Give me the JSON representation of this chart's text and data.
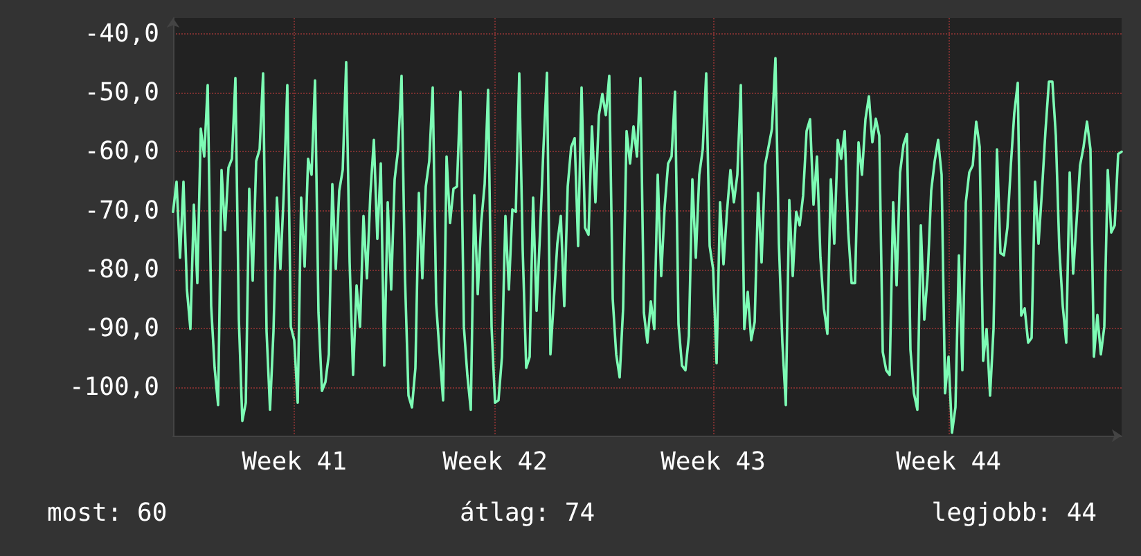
{
  "chart_data": {
    "type": "line",
    "grid": true,
    "marker": "none",
    "line_style": "solid",
    "ylim": [
      -108.2,
      -37.3
    ],
    "categories": [
      null,
      null,
      null,
      null,
      null,
      null,
      null,
      null,
      null,
      null,
      null,
      null,
      null,
      null,
      null,
      null,
      null,
      null,
      null,
      null,
      null,
      null,
      null,
      null,
      null,
      null,
      null,
      null,
      null,
      null,
      null,
      null,
      null,
      null,
      null,
      "Week 41",
      null,
      null,
      null,
      null,
      null,
      null,
      null,
      null,
      null,
      null,
      null,
      null,
      null,
      null,
      null,
      null,
      null,
      null,
      null,
      null,
      null,
      null,
      null,
      null,
      null,
      null,
      null,
      null,
      null,
      null,
      null,
      null,
      null,
      null,
      null,
      null,
      null,
      null,
      null,
      null,
      null,
      null,
      null,
      null,
      null,
      null,
      null,
      null,
      null,
      null,
      null,
      null,
      null,
      null,
      null,
      null,
      null,
      "Week 42",
      null,
      null,
      null,
      null,
      null,
      null,
      null,
      null,
      null,
      null,
      null,
      null,
      null,
      null,
      null,
      null,
      null,
      null,
      null,
      null,
      null,
      null,
      null,
      null,
      null,
      null,
      null,
      null,
      null,
      null,
      null,
      null,
      null,
      null,
      null,
      null,
      null,
      null,
      null,
      null,
      null,
      null,
      null,
      null,
      null,
      null,
      null,
      null,
      null,
      null,
      null,
      null,
      null,
      null,
      null,
      null,
      null,
      null,
      null,
      null,
      null,
      null,
      "Week 43",
      null,
      null,
      null,
      null,
      null,
      null,
      null,
      null,
      null,
      null,
      null,
      null,
      null,
      null,
      null,
      null,
      null,
      null,
      null,
      null,
      null,
      null,
      null,
      null,
      null,
      null,
      null,
      null,
      null,
      null,
      null,
      null,
      null,
      null,
      null,
      null,
      null,
      null,
      null,
      null,
      null,
      null,
      null,
      null,
      null,
      null,
      null,
      null,
      null,
      null,
      null,
      null,
      null,
      null,
      null,
      null,
      null,
      null,
      null,
      null,
      null,
      null,
      null,
      null,
      null,
      null,
      null,
      "Week 44",
      null,
      null,
      null,
      null,
      null,
      null,
      null,
      null,
      null,
      null,
      null,
      null,
      null,
      null,
      null,
      null,
      null,
      null,
      null,
      null,
      null,
      null,
      null,
      null,
      null,
      null,
      null,
      null,
      null,
      null,
      null,
      null,
      null,
      null,
      null,
      null,
      null,
      null,
      null,
      null,
      null,
      null,
      null,
      null,
      null,
      null,
      null,
      null,
      null,
      null
    ],
    "yticks": [
      {
        "value": -100,
        "label": "-100,0"
      },
      {
        "value": -90,
        "label": "-90,0"
      },
      {
        "value": -80,
        "label": "-80,0"
      },
      {
        "value": -70,
        "label": "-70,0"
      },
      {
        "value": -60,
        "label": "-60,0"
      },
      {
        "value": -50,
        "label": "-50,0"
      },
      {
        "value": -40,
        "label": "-40,0"
      }
    ],
    "annotations": [
      "most: 60",
      "átlag: 74",
      "legjobb: 44"
    ],
    "series": [
      {
        "color": "#7dfcb5",
        "values": [
          -70.2,
          -65.1,
          -78.0,
          -65.1,
          -83.4,
          -90.1,
          -69.0,
          -82.3,
          -56.1,
          -60.8,
          -48.7,
          -86.2,
          -96.7,
          -103.0,
          -63.1,
          -73.3,
          -62.7,
          -61.2,
          -47.5,
          -88.5,
          -105.7,
          -102.6,
          -66.3,
          -81.9,
          -61.6,
          -59.6,
          -46.7,
          -90.5,
          -103.8,
          -90.5,
          -67.8,
          -79.9,
          -66.6,
          -48.7,
          -89.7,
          -92.0,
          -102.6,
          -67.8,
          -79.5,
          -61.2,
          -63.9,
          -47.9,
          -87.3,
          -100.6,
          -99.1,
          -94.4,
          -65.5,
          -79.9,
          -66.6,
          -63.1,
          -44.8,
          -78.8,
          -97.9,
          -82.7,
          -89.7,
          -70.9,
          -81.5,
          -67.0,
          -58.0,
          -74.8,
          -62.0,
          -96.3,
          -68.6,
          -83.4,
          -64.7,
          -59.6,
          -47.1,
          -81.5,
          -101.4,
          -103.4,
          -96.7,
          -67.0,
          -81.5,
          -65.9,
          -61.6,
          -49.1,
          -85.8,
          -94.4,
          -102.2,
          -60.8,
          -72.1,
          -66.3,
          -65.9,
          -49.8,
          -89.7,
          -97.9,
          -103.8,
          -67.4,
          -84.2,
          -72.1,
          -65.5,
          -49.5,
          -89.7,
          -102.6,
          -102.2,
          -94.8,
          -70.9,
          -83.4,
          -69.8,
          -70.2,
          -46.7,
          -76.8,
          -96.7,
          -94.8,
          -67.8,
          -87.0,
          -73.7,
          -59.2,
          -46.6,
          -94.4,
          -85.0,
          -75.6,
          -70.9,
          -86.2,
          -65.9,
          -59.2,
          -57.7,
          -76.0,
          -49.1,
          -72.9,
          -74.1,
          -55.7,
          -68.6,
          -53.8,
          -50.2,
          -53.8,
          -47.1,
          -85.0,
          -94.4,
          -98.3,
          -86.6,
          -56.5,
          -62.0,
          -55.7,
          -60.8,
          -47.5,
          -87.3,
          -92.4,
          -85.4,
          -90.1,
          -63.9,
          -81.1,
          -69.4,
          -62.0,
          -60.8,
          -49.8,
          -89.3,
          -96.3,
          -97.1,
          -91.3,
          -64.7,
          -78.0,
          -63.9,
          -59.6,
          -46.7,
          -76.0,
          -79.9,
          -95.9,
          -68.6,
          -79.1,
          -70.2,
          -63.1,
          -68.6,
          -63.9,
          -48.7,
          -90.1,
          -83.8,
          -92.0,
          -88.9,
          -67.0,
          -78.8,
          -62.3,
          -59.2,
          -56.1,
          -44.1,
          -75.6,
          -92.4,
          -103.0,
          -68.2,
          -81.1,
          -70.2,
          -72.5,
          -67.4,
          -56.5,
          -54.5,
          -69.0,
          -60.8,
          -78.0,
          -86.6,
          -90.9,
          -64.7,
          -75.6,
          -58.0,
          -61.2,
          -56.5,
          -73.3,
          -82.3,
          -82.3,
          -58.4,
          -63.9,
          -54.5,
          -50.6,
          -58.4,
          -54.4,
          -57.3,
          -94.0,
          -97.1,
          -97.9,
          -68.6,
          -82.7,
          -63.5,
          -58.8,
          -57.0,
          -93.6,
          -101.0,
          -103.8,
          -72.5,
          -88.5,
          -80.7,
          -66.6,
          -61.6,
          -58.0,
          -63.9,
          -101.0,
          -94.8,
          -107.7,
          -103.4,
          -77.6,
          -97.1,
          -68.6,
          -63.5,
          -62.3,
          -54.9,
          -59.2,
          -95.5,
          -90.1,
          -101.4,
          -90.1,
          -59.6,
          -77.2,
          -77.6,
          -72.9,
          -62.3,
          -53.4,
          -48.3,
          -87.8,
          -86.6,
          -92.4,
          -91.6,
          -65.1,
          -75.6,
          -66.6,
          -56.5,
          -48.1,
          -48.1,
          -57.3,
          -76.4,
          -86.2,
          -92.4,
          -63.5,
          -80.7,
          -71.7,
          -62.3,
          -59.2,
          -54.9,
          -59.6,
          -94.8,
          -87.7,
          -94.4,
          -89.7,
          -63.1,
          -73.7,
          -72.5,
          -60.4,
          -60.0
        ]
      }
    ]
  }
}
